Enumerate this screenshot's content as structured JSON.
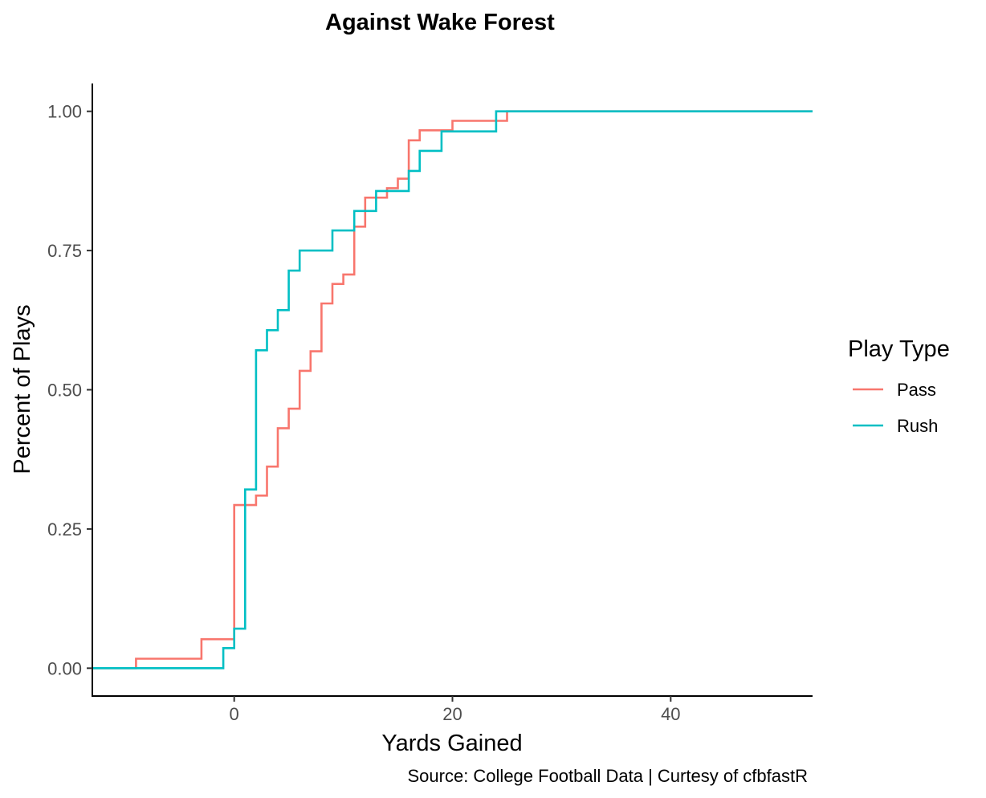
{
  "chart_data": {
    "type": "line",
    "subtype": "step-ecdf",
    "title": "Against Wake Forest",
    "xlabel": "Yards Gained",
    "ylabel": "Percent of Plays",
    "caption": "Source: College Football Data | Curtesy of cfbfastR",
    "xlim": [
      -13,
      53
    ],
    "ylim": [
      -0.05,
      1.05
    ],
    "xticks": [
      0,
      20,
      40
    ],
    "yticks": [
      0.0,
      0.25,
      0.5,
      0.75,
      1.0
    ],
    "xtick_labels": [
      "0",
      "20",
      "40"
    ],
    "ytick_labels": [
      "0.00",
      "0.25",
      "0.50",
      "0.75",
      "1.00"
    ],
    "legend": {
      "title": "Play Type",
      "position": "right",
      "entries": [
        "Pass",
        "Rush"
      ]
    },
    "series": [
      {
        "name": "Pass",
        "color": "#F8766D",
        "x": [
          -13,
          -9,
          -3,
          0,
          2,
          3,
          4,
          5,
          6,
          7,
          8,
          9,
          10,
          11,
          12,
          13,
          14,
          15,
          16,
          17,
          20,
          25,
          53
        ],
        "values": [
          0,
          0.017,
          0.052,
          0.293,
          0.31,
          0.362,
          0.431,
          0.466,
          0.534,
          0.569,
          0.655,
          0.69,
          0.707,
          0.793,
          0.845,
          0.845,
          0.862,
          0.879,
          0.948,
          0.966,
          0.983,
          1.0,
          1.0
        ]
      },
      {
        "name": "Rush",
        "color": "#00BFC4",
        "x": [
          -13,
          -1,
          0,
          1,
          2,
          3,
          4,
          5,
          6,
          9,
          11,
          13,
          16,
          17,
          19,
          24,
          53
        ],
        "values": [
          0,
          0.036,
          0.071,
          0.321,
          0.571,
          0.607,
          0.643,
          0.714,
          0.75,
          0.786,
          0.821,
          0.857,
          0.893,
          0.929,
          0.964,
          1.0,
          1.0
        ]
      }
    ]
  }
}
